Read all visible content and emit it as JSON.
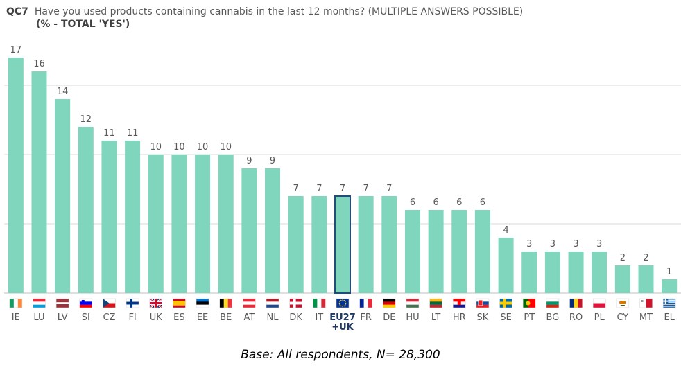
{
  "header": {
    "code": "QC7",
    "question": "Have you used products containing cannabis in the last 12 months? (MULTIPLE ANSWERS POSSIBLE)",
    "subtitle": "(% - TOTAL 'YES')"
  },
  "footnote": "Base: All respondents, N= 28,300",
  "colors": {
    "bar": "#7fd6bd",
    "highlight_border": "#1f4e79",
    "grid": "#d9d9d9",
    "axis": "#bfbfbf"
  },
  "chart_data": {
    "type": "bar",
    "title": "",
    "xlabel": "",
    "ylabel": "",
    "ylim": [
      0,
      17
    ],
    "grid": true,
    "highlight": "EU27 +UK",
    "categories": [
      "IE",
      "LU",
      "LV",
      "SI",
      "CZ",
      "FI",
      "UK",
      "ES",
      "EE",
      "BE",
      "AT",
      "NL",
      "DK",
      "IT",
      "EU27 +UK",
      "FR",
      "DE",
      "HU",
      "LT",
      "HR",
      "SK",
      "SE",
      "PT",
      "BG",
      "RO",
      "PL",
      "CY",
      "MT",
      "EL"
    ],
    "values": [
      17,
      16,
      14,
      12,
      11,
      11,
      10,
      10,
      10,
      10,
      9,
      9,
      7,
      7,
      7,
      7,
      7,
      6,
      6,
      6,
      6,
      4,
      3,
      3,
      3,
      3,
      2,
      2,
      1
    ]
  },
  "flags": [
    {
      "code": "IE",
      "icon": "flag-ie-icon"
    },
    {
      "code": "LU",
      "icon": "flag-lu-icon"
    },
    {
      "code": "LV",
      "icon": "flag-lv-icon"
    },
    {
      "code": "SI",
      "icon": "flag-si-icon"
    },
    {
      "code": "CZ",
      "icon": "flag-cz-icon"
    },
    {
      "code": "FI",
      "icon": "flag-fi-icon"
    },
    {
      "code": "UK",
      "icon": "flag-uk-icon"
    },
    {
      "code": "ES",
      "icon": "flag-es-icon"
    },
    {
      "code": "EE",
      "icon": "flag-ee-icon"
    },
    {
      "code": "BE",
      "icon": "flag-be-icon"
    },
    {
      "code": "AT",
      "icon": "flag-at-icon"
    },
    {
      "code": "NL",
      "icon": "flag-nl-icon"
    },
    {
      "code": "DK",
      "icon": "flag-dk-icon"
    },
    {
      "code": "IT",
      "icon": "flag-it-icon"
    },
    {
      "code": "EU27 +UK",
      "icon": "flag-eu-icon"
    },
    {
      "code": "FR",
      "icon": "flag-fr-icon"
    },
    {
      "code": "DE",
      "icon": "flag-de-icon"
    },
    {
      "code": "HU",
      "icon": "flag-hu-icon"
    },
    {
      "code": "LT",
      "icon": "flag-lt-icon"
    },
    {
      "code": "HR",
      "icon": "flag-hr-icon"
    },
    {
      "code": "SK",
      "icon": "flag-sk-icon"
    },
    {
      "code": "SE",
      "icon": "flag-se-icon"
    },
    {
      "code": "PT",
      "icon": "flag-pt-icon"
    },
    {
      "code": "BG",
      "icon": "flag-bg-icon"
    },
    {
      "code": "RO",
      "icon": "flag-ro-icon"
    },
    {
      "code": "PL",
      "icon": "flag-pl-icon"
    },
    {
      "code": "CY",
      "icon": "flag-cy-icon"
    },
    {
      "code": "MT",
      "icon": "flag-mt-icon"
    },
    {
      "code": "EL",
      "icon": "flag-el-icon"
    }
  ]
}
